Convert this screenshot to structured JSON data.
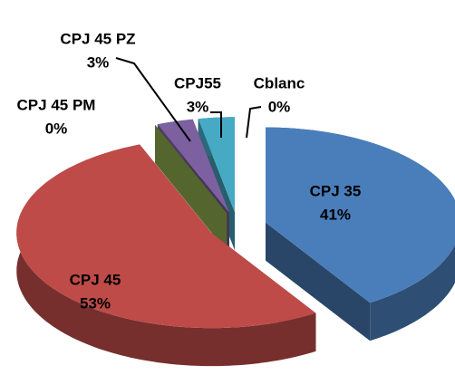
{
  "chart_data": {
    "type": "pie",
    "categories": [
      "CPJ 35",
      "CPJ 45",
      "CPJ 45 PM",
      "CPJ 45 PZ",
      "CPJ55",
      "Cblanc"
    ],
    "values": [
      41,
      53,
      0,
      3,
      3,
      0
    ],
    "value_labels": [
      "41%",
      "53%",
      "0%",
      "3%",
      "3%",
      "0%"
    ],
    "colors": [
      "#4a7ebb",
      "#be4b48",
      "#98b954",
      "#7d60a0",
      "#46aac5",
      "#f79646"
    ]
  }
}
